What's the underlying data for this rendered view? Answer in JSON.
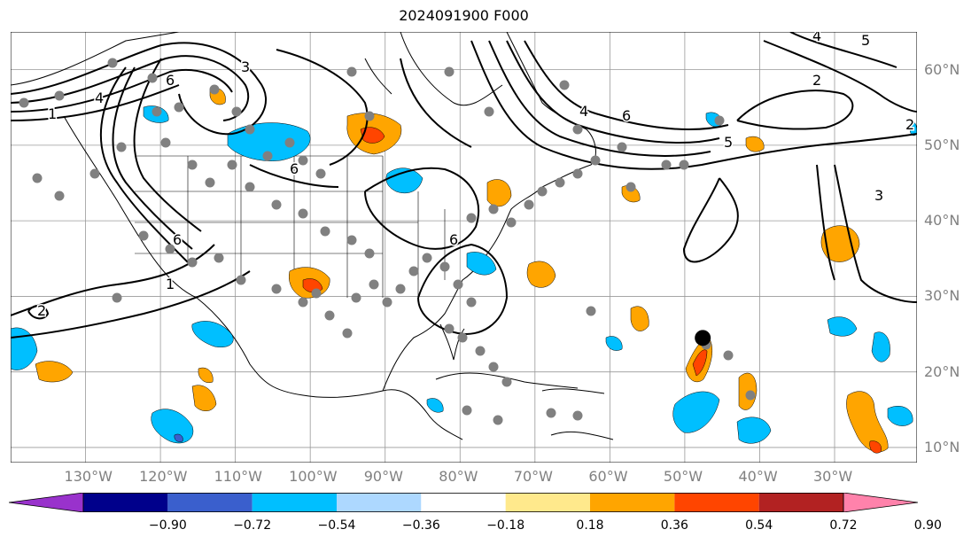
{
  "title": "2024091900 F000",
  "map": {
    "projection": "PlateCarree",
    "lon_range": [
      -140,
      -19
    ],
    "lat_range": [
      8,
      65
    ],
    "gridlines": true,
    "lon_labels": [
      "130°W",
      "120°W",
      "110°W",
      "100°W",
      "90°W",
      "80°W",
      "70°W",
      "60°W",
      "50°W",
      "40°W",
      "30°W"
    ],
    "lon_values": [
      -130,
      -120,
      -110,
      -100,
      -90,
      -80,
      -70,
      -60,
      -50,
      -40,
      -30
    ],
    "lat_labels": [
      "10°N",
      "20°N",
      "30°N",
      "40°N",
      "50°N",
      "60°N"
    ],
    "lat_values": [
      10,
      20,
      30,
      40,
      50,
      60
    ],
    "contour_labels": [
      "1",
      "2",
      "3",
      "4",
      "5",
      "6"
    ],
    "storm_marker": {
      "lon": -47.6,
      "lat": 24.5
    }
  },
  "colorbar": {
    "ticks": [
      "−0.90",
      "−0.72",
      "−0.54",
      "−0.36",
      "−0.18",
      "0.18",
      "0.36",
      "0.54",
      "0.72",
      "0.90"
    ],
    "colors": [
      "#9932cc",
      "#00008b",
      "#3a5fcd",
      "#00bfff",
      "#add8ff",
      "#ffffff",
      "#ffe98c",
      "#ffa500",
      "#ff4500",
      "#b22222",
      "#ff82ab"
    ],
    "extend": "both"
  }
}
